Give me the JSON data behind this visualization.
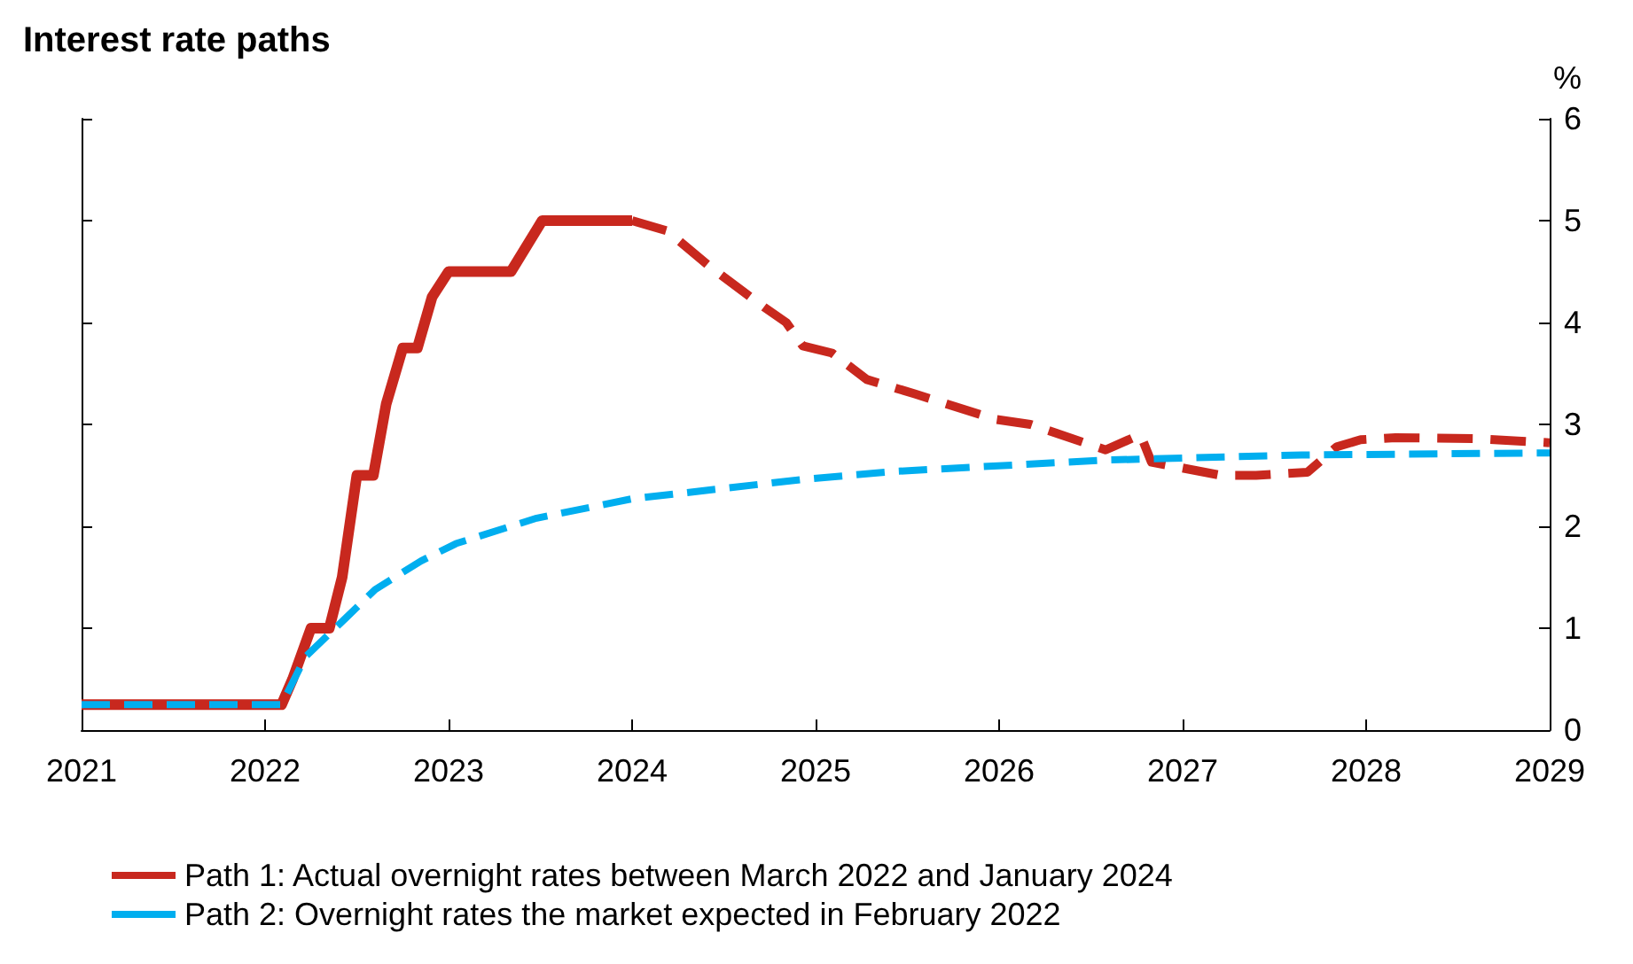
{
  "chart_data": {
    "type": "line",
    "title": "Interest rate paths",
    "ylabel": "%",
    "xlim": [
      2021,
      2029
    ],
    "xticks": [
      2021,
      2022,
      2023,
      2024,
      2025,
      2026,
      2027,
      2028,
      2029
    ],
    "ylim": [
      0,
      6
    ],
    "yticks": [
      0,
      1,
      2,
      3,
      4,
      5,
      6
    ],
    "grid": false,
    "legend": "bottom",
    "marker": "none",
    "series": [
      {
        "name": "Path 1: Actual overnight rates between March 2022 and January 2024",
        "color": "#c8281e",
        "line_style": "solid",
        "x": [
          2021,
          2022.09,
          2022.15,
          2022.25,
          2022.35,
          2022.42,
          2022.5,
          2022.59,
          2022.66,
          2022.75,
          2022.83,
          2022.91,
          2023.0,
          2023.34,
          2023.51,
          2024.0
        ],
        "values": [
          0.25,
          0.25,
          0.5,
          1.0,
          1.0,
          1.5,
          2.5,
          2.5,
          3.2,
          3.75,
          3.75,
          4.25,
          4.5,
          4.5,
          5.0,
          5.0
        ]
      },
      {
        "color": "#c8281e",
        "line_style": "dashed",
        "x": [
          2024.0,
          2024.19,
          2024.43,
          2024.72,
          2024.84,
          2024.93,
          2025.09,
          2025.28,
          2025.54,
          2025.98,
          2026.17,
          2026.58,
          2026.77,
          2026.83,
          2027.21,
          2027.4,
          2027.68,
          2027.84,
          2027.97,
          2028.16,
          2028.6,
          2029.0
        ],
        "values": [
          5.0,
          4.9,
          4.54,
          4.15,
          4.0,
          3.77,
          3.7,
          3.44,
          3.3,
          3.05,
          3.0,
          2.75,
          2.9,
          2.63,
          2.5,
          2.5,
          2.53,
          2.78,
          2.85,
          2.87,
          2.86,
          2.82
        ]
      },
      {
        "name": "Path 2: Overnight rates the market expected in February 2022",
        "color": "#00aeef",
        "line_style": "dashed",
        "x": [
          2021,
          2022.09,
          2022.22,
          2022.44,
          2022.6,
          2022.85,
          2023.04,
          2023.48,
          2024.0,
          2024.93,
          2025.44,
          2026.58,
          2027.65,
          2029.0
        ],
        "values": [
          0.25,
          0.25,
          0.72,
          1.1,
          1.38,
          1.66,
          1.83,
          2.08,
          2.27,
          2.46,
          2.54,
          2.65,
          2.7,
          2.72
        ]
      }
    ]
  }
}
